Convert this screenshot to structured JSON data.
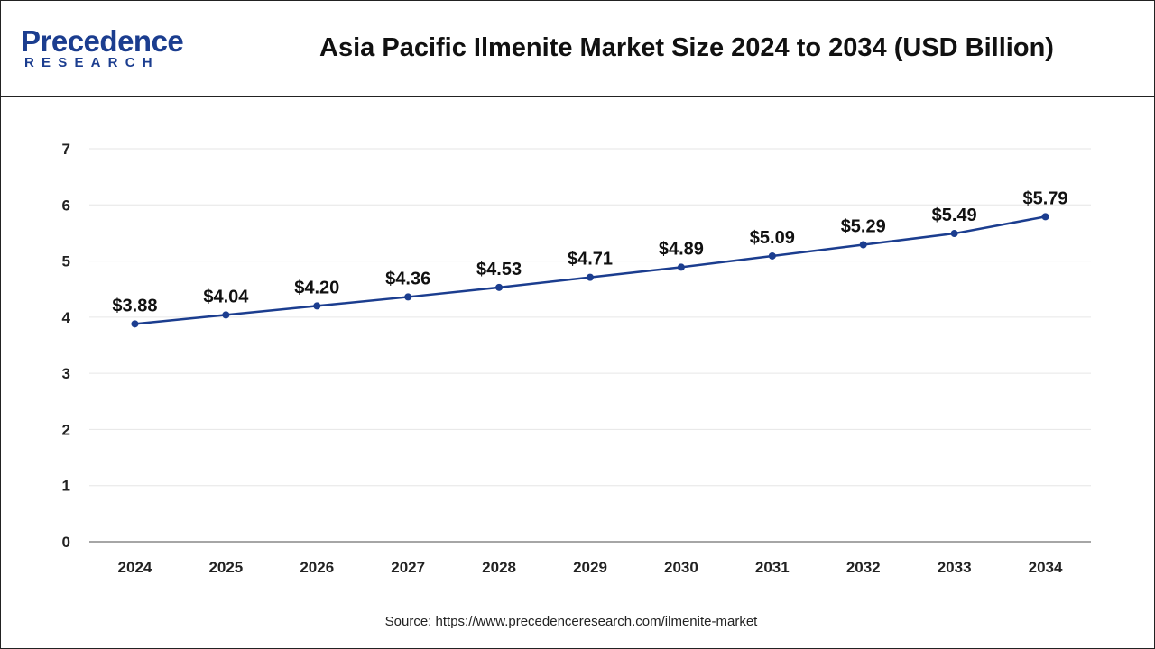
{
  "header": {
    "logo_primary": "Precedence",
    "logo_secondary": "RESEARCH",
    "title": "Asia Pacific Ilmenite Market Size 2024 to 2034 (USD Billion)"
  },
  "colors": {
    "line": "#1b3d8f",
    "brand": "#1b3d8f",
    "grid": "#e6e6e6",
    "axis": "#888888"
  },
  "chart_data": {
    "type": "line",
    "categories": [
      "2024",
      "2025",
      "2026",
      "2027",
      "2028",
      "2029",
      "2030",
      "2031",
      "2032",
      "2033",
      "2034"
    ],
    "values": [
      3.88,
      4.04,
      4.2,
      4.36,
      4.53,
      4.71,
      4.89,
      5.09,
      5.29,
      5.49,
      5.79
    ],
    "data_labels": [
      "$3.88",
      "$4.04",
      "$4.20",
      "$4.36",
      "$4.53",
      "$4.71",
      "$4.89",
      "$5.09",
      "$5.29",
      "$5.49",
      "$5.79"
    ],
    "yticks": [
      "0",
      "1",
      "2",
      "3",
      "4",
      "5",
      "6",
      "7"
    ],
    "ylim": [
      0,
      7
    ],
    "grid": true,
    "legend": "none"
  },
  "footer": {
    "source": "Source: https://www.precedenceresearch.com/ilmenite-market"
  }
}
